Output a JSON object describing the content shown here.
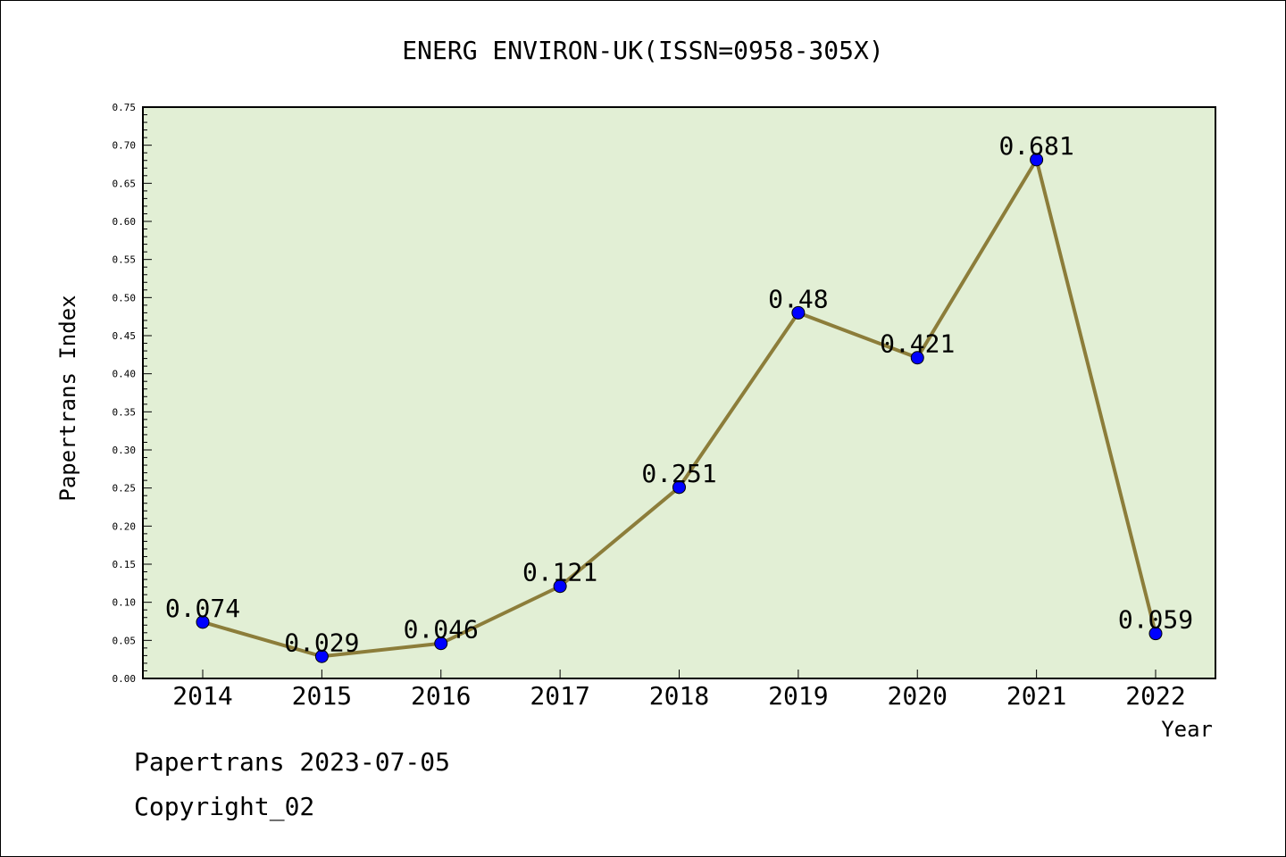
{
  "chart_data": {
    "type": "line",
    "title": "ENERG ENVIRON-UK(ISSN=0958-305X)",
    "xlabel": "Year",
    "ylabel": "Papertrans Index",
    "categories": [
      "2014",
      "2015",
      "2016",
      "2017",
      "2018",
      "2019",
      "2020",
      "2021",
      "2022"
    ],
    "series": [
      {
        "values": [
          0.074,
          0.029,
          0.046,
          0.121,
          0.251,
          0.48,
          0.421,
          0.681,
          0.059
        ],
        "labels": [
          "0.074",
          "0.029",
          "0.046",
          "0.121",
          "0.251",
          "0.48",
          "0.421",
          "0.681",
          "0.059"
        ]
      }
    ],
    "ylim": [
      0,
      0.75
    ],
    "yticks": [
      "0.00",
      "0.05",
      "0.10",
      "0.15",
      "0.20",
      "0.25",
      "0.30",
      "0.35",
      "0.40",
      "0.45",
      "0.50",
      "0.55",
      "0.60",
      "0.65",
      "0.70",
      "0.75"
    ],
    "grid": false,
    "colors": {
      "plot_background": "#e2efd5",
      "line": "#8c7d3a",
      "marker": "#0000ff"
    }
  },
  "footer": {
    "line1": "Papertrans 2023-07-05",
    "line2": "Copyright_02"
  }
}
